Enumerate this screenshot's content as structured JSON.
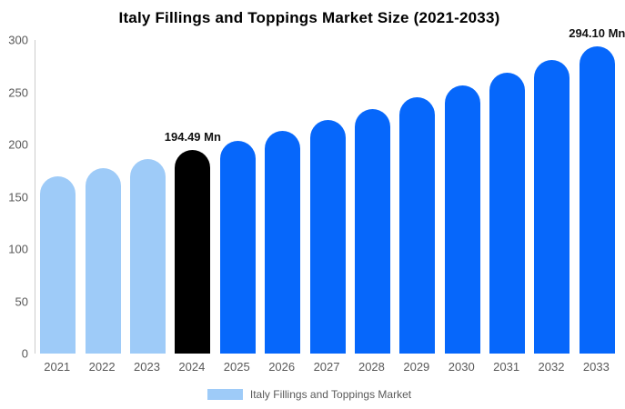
{
  "chart_data": {
    "type": "bar",
    "title": "Italy Fillings and Toppings Market Size (2021-2033)",
    "categories": [
      "2021",
      "2022",
      "2023",
      "2024",
      "2025",
      "2026",
      "2027",
      "2028",
      "2029",
      "2030",
      "2031",
      "2032",
      "2033"
    ],
    "values": [
      169.4,
      177.4,
      185.7,
      194.49,
      203.7,
      213.2,
      223.3,
      233.8,
      244.8,
      256.3,
      268.4,
      281.0,
      294.1
    ],
    "unit": "Mn",
    "xlabel": "",
    "ylabel": "",
    "ylim": [
      0,
      300
    ],
    "yticks": [
      0,
      50,
      100,
      150,
      200,
      250,
      300
    ],
    "grid": false,
    "bar_colors": [
      "#9ECBF8",
      "#9ECBF8",
      "#9ECBF8",
      "#000000",
      "#0667FB",
      "#0667FB",
      "#0667FB",
      "#0667FB",
      "#0667FB",
      "#0667FB",
      "#0667FB",
      "#0667FB",
      "#0667FB"
    ],
    "annotations": [
      {
        "category": "2024",
        "index": 3,
        "text": "194.49 Mn"
      },
      {
        "category": "2033",
        "index": 12,
        "text": "294.10 Mn"
      }
    ],
    "legend": {
      "position": "bottom",
      "items": [
        {
          "label": "Italy Fillings and Toppings Market",
          "color": "#9ECBF8"
        }
      ]
    }
  },
  "colors": {
    "background": "#FFFFFF",
    "axis_line": "#CCCCCC",
    "axis_text": "#595959",
    "annotation_text": "#111111",
    "highlight_bar": "#000000",
    "history_bar": "#9ECBF8",
    "forecast_bar": "#0667FB"
  }
}
